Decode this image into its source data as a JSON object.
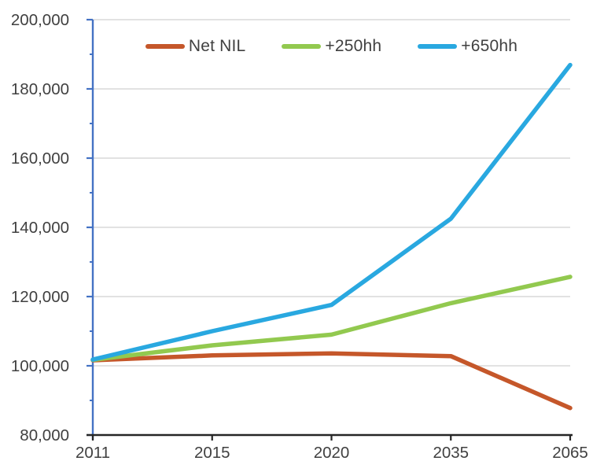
{
  "chart_data": {
    "type": "line",
    "title": "",
    "xlabel": "",
    "ylabel": "",
    "categories": [
      "2011",
      "2015",
      "2020",
      "2035",
      "2065"
    ],
    "series": [
      {
        "name": "Net NIL",
        "color": "#C5572A",
        "values": [
          101600,
          103000,
          103600,
          102800,
          87800
        ]
      },
      {
        "name": "+250hh",
        "color": "#92C94F",
        "values": [
          101700,
          105900,
          109000,
          118100,
          125700
        ]
      },
      {
        "name": "+650hh",
        "color": "#29A8E0",
        "values": [
          101800,
          110000,
          117600,
          142500,
          186900
        ]
      }
    ],
    "ylim": [
      80000,
      200000
    ],
    "ytick_step": 20000,
    "yminor_step": 10000,
    "y_tick_labels": [
      "200,000",
      "180,000",
      "160,000",
      "140,000",
      "120,000",
      "100,000",
      "80,000"
    ],
    "x_tick_labels": [
      "2011",
      "2015",
      "2020",
      "2035",
      "2065"
    ],
    "grid": "horizontal-major",
    "legend_position": "top-center",
    "colors": {
      "y_axis": "#4472C4",
      "x_axis": "#262626",
      "gridline": "#D9D9D9",
      "tick_label_text": "#404040",
      "legend_text": "#404040",
      "background": "#FFFFFF"
    }
  }
}
